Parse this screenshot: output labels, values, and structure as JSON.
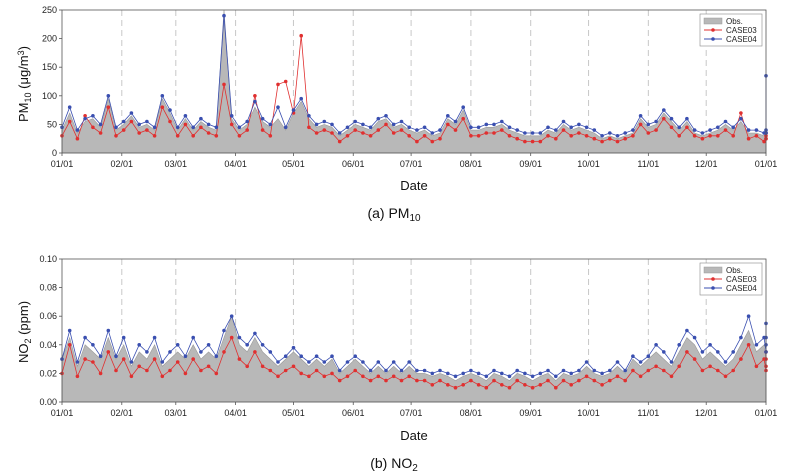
{
  "chart_data": [
    {
      "type": "area+line",
      "panel_caption": "(a) PM",
      "panel_caption_sub": "10",
      "ylabel_pre": "PM",
      "ylabel_sub": "10",
      "ylabel_mid": " (μg/m",
      "ylabel_sup": "3",
      "ylabel_post": ")",
      "xlabel": "Date",
      "ylim": [
        0,
        250
      ],
      "yticks": [
        0,
        50,
        100,
        150,
        200,
        250
      ],
      "ytick_labels": [
        "0",
        "50",
        "100",
        "150",
        "200",
        "250"
      ],
      "xtick_labels": [
        "01/01",
        "02/01",
        "03/01",
        "04/01",
        "05/01",
        "06/01",
        "07/01",
        "08/01",
        "09/01",
        "10/01",
        "11/01",
        "12/01",
        "01/01"
      ],
      "xtick_days": [
        0,
        31,
        59,
        90,
        120,
        151,
        181,
        212,
        243,
        273,
        304,
        334,
        365
      ],
      "grid": "vertical dashed at month starts",
      "legend_position": "top-right",
      "legend": [
        "Obs.",
        "CASE03",
        "CASE04"
      ],
      "day_step": 4,
      "series": [
        {
          "name": "Obs.",
          "color": "#b8b8b8",
          "kind": "area",
          "values": [
            40,
            70,
            35,
            55,
            60,
            45,
            95,
            40,
            50,
            65,
            45,
            50,
            40,
            95,
            70,
            40,
            60,
            40,
            55,
            45,
            40,
            250,
            60,
            40,
            50,
            80,
            55,
            45,
            60,
            40,
            70,
            90,
            60,
            45,
            50,
            45,
            30,
            40,
            50,
            45,
            40,
            55,
            60,
            45,
            50,
            40,
            35,
            40,
            30,
            35,
            60,
            50,
            75,
            40,
            40,
            45,
            45,
            50,
            40,
            35,
            30,
            30,
            30,
            40,
            35,
            50,
            40,
            45,
            40,
            35,
            25,
            30,
            25,
            30,
            35,
            60,
            45,
            50,
            70,
            55,
            40,
            55,
            35,
            30,
            35,
            40,
            50,
            40,
            55,
            35,
            35,
            30,
            35,
            30,
            40,
            30
          ]
        },
        {
          "name": "CASE03",
          "color": "#e03030",
          "kind": "line+marker",
          "values": [
            30,
            55,
            25,
            65,
            45,
            35,
            80,
            30,
            40,
            55,
            35,
            40,
            30,
            80,
            55,
            30,
            50,
            30,
            45,
            35,
            30,
            120,
            50,
            30,
            40,
            100,
            40,
            30,
            120,
            125,
            70,
            205,
            45,
            35,
            40,
            35,
            20,
            30,
            40,
            35,
            30,
            40,
            50,
            35,
            40,
            30,
            20,
            30,
            20,
            25,
            50,
            40,
            60,
            30,
            30,
            35,
            35,
            40,
            30,
            25,
            20,
            20,
            20,
            30,
            25,
            40,
            30,
            35,
            30,
            25,
            20,
            25,
            20,
            25,
            30,
            50,
            35,
            40,
            60,
            45,
            30,
            45,
            30,
            25,
            30,
            30,
            40,
            30,
            70,
            25,
            30,
            20,
            30,
            25,
            35,
            25
          ]
        },
        {
          "name": "CASE04",
          "color": "#3a4fb0",
          "kind": "line+marker",
          "values": [
            45,
            80,
            40,
            60,
            65,
            50,
            100,
            45,
            55,
            70,
            50,
            55,
            45,
            100,
            75,
            45,
            65,
            45,
            60,
            50,
            45,
            240,
            65,
            45,
            55,
            90,
            60,
            50,
            80,
            45,
            75,
            95,
            65,
            50,
            55,
            50,
            35,
            45,
            55,
            50,
            45,
            60,
            65,
            50,
            55,
            45,
            40,
            45,
            35,
            40,
            65,
            55,
            80,
            45,
            45,
            50,
            50,
            55,
            45,
            40,
            35,
            35,
            35,
            45,
            40,
            55,
            45,
            50,
            45,
            40,
            30,
            35,
            30,
            35,
            40,
            65,
            50,
            55,
            75,
            60,
            45,
            60,
            40,
            35,
            40,
            45,
            55,
            45,
            60,
            40,
            40,
            35,
            40,
            35,
            135,
            35
          ]
        }
      ]
    },
    {
      "type": "area+line",
      "panel_caption": "(b) NO",
      "panel_caption_sub": "2",
      "ylabel_pre": "NO",
      "ylabel_sub": "2",
      "ylabel_mid": " (ppm)",
      "ylabel_sup": "",
      "ylabel_post": "",
      "xlabel": "Date",
      "ylim": [
        0,
        0.1
      ],
      "yticks": [
        0,
        0.02,
        0.04,
        0.06,
        0.08,
        0.1
      ],
      "ytick_labels": [
        "0.00",
        "0.02",
        "0.04",
        "0.06",
        "0.08",
        "0.10"
      ],
      "xtick_labels": [
        "01/01",
        "02/01",
        "03/01",
        "04/01",
        "05/01",
        "06/01",
        "07/01",
        "08/01",
        "09/01",
        "10/01",
        "11/01",
        "12/01",
        "01/01"
      ],
      "xtick_days": [
        0,
        31,
        59,
        90,
        120,
        151,
        181,
        212,
        243,
        273,
        304,
        334,
        365
      ],
      "grid": "vertical dashed at month starts",
      "legend_position": "top-right",
      "legend": [
        "Obs.",
        "CASE03",
        "CASE04"
      ],
      "day_step": 4,
      "series": [
        {
          "name": "Obs.",
          "color": "#b8b8b8",
          "kind": "area",
          "values": [
            0.03,
            0.045,
            0.025,
            0.04,
            0.035,
            0.03,
            0.045,
            0.03,
            0.04,
            0.025,
            0.035,
            0.03,
            0.04,
            0.025,
            0.03,
            0.035,
            0.03,
            0.04,
            0.03,
            0.035,
            0.03,
            0.045,
            0.06,
            0.04,
            0.035,
            0.045,
            0.035,
            0.03,
            0.025,
            0.03,
            0.035,
            0.03,
            0.025,
            0.03,
            0.025,
            0.03,
            0.02,
            0.025,
            0.03,
            0.025,
            0.02,
            0.025,
            0.02,
            0.025,
            0.02,
            0.025,
            0.02,
            0.02,
            0.018,
            0.02,
            0.018,
            0.015,
            0.018,
            0.02,
            0.018,
            0.015,
            0.02,
            0.018,
            0.015,
            0.02,
            0.018,
            0.015,
            0.018,
            0.02,
            0.015,
            0.02,
            0.018,
            0.02,
            0.025,
            0.02,
            0.018,
            0.02,
            0.025,
            0.02,
            0.03,
            0.025,
            0.03,
            0.035,
            0.03,
            0.025,
            0.035,
            0.045,
            0.04,
            0.03,
            0.035,
            0.03,
            0.025,
            0.03,
            0.04,
            0.05,
            0.035,
            0.04,
            0.03,
            0.035,
            0.045,
            0.04
          ]
        },
        {
          "name": "CASE03",
          "color": "#e03030",
          "kind": "line+marker",
          "values": [
            0.02,
            0.04,
            0.018,
            0.03,
            0.028,
            0.02,
            0.035,
            0.022,
            0.03,
            0.018,
            0.025,
            0.022,
            0.03,
            0.018,
            0.022,
            0.028,
            0.02,
            0.03,
            0.022,
            0.025,
            0.02,
            0.035,
            0.045,
            0.03,
            0.025,
            0.035,
            0.025,
            0.022,
            0.018,
            0.022,
            0.025,
            0.02,
            0.018,
            0.022,
            0.018,
            0.02,
            0.015,
            0.018,
            0.022,
            0.018,
            0.015,
            0.018,
            0.015,
            0.018,
            0.015,
            0.018,
            0.015,
            0.015,
            0.012,
            0.015,
            0.012,
            0.01,
            0.012,
            0.015,
            0.012,
            0.01,
            0.015,
            0.012,
            0.01,
            0.015,
            0.012,
            0.01,
            0.012,
            0.015,
            0.01,
            0.015,
            0.012,
            0.015,
            0.018,
            0.015,
            0.012,
            0.015,
            0.018,
            0.015,
            0.022,
            0.018,
            0.022,
            0.025,
            0.022,
            0.018,
            0.025,
            0.035,
            0.03,
            0.022,
            0.025,
            0.022,
            0.018,
            0.022,
            0.03,
            0.04,
            0.025,
            0.03,
            0.022,
            0.025,
            0.035,
            0.03
          ]
        },
        {
          "name": "CASE04",
          "color": "#3a4fb0",
          "kind": "line+marker",
          "values": [
            0.03,
            0.05,
            0.028,
            0.045,
            0.04,
            0.032,
            0.05,
            0.032,
            0.045,
            0.028,
            0.04,
            0.035,
            0.045,
            0.028,
            0.035,
            0.04,
            0.032,
            0.045,
            0.035,
            0.04,
            0.032,
            0.05,
            0.06,
            0.045,
            0.04,
            0.048,
            0.04,
            0.035,
            0.028,
            0.032,
            0.038,
            0.032,
            0.028,
            0.032,
            0.028,
            0.032,
            0.022,
            0.028,
            0.032,
            0.028,
            0.022,
            0.028,
            0.022,
            0.028,
            0.022,
            0.028,
            0.022,
            0.022,
            0.02,
            0.022,
            0.02,
            0.018,
            0.02,
            0.022,
            0.02,
            0.018,
            0.022,
            0.02,
            0.018,
            0.022,
            0.02,
            0.018,
            0.02,
            0.022,
            0.018,
            0.022,
            0.02,
            0.022,
            0.028,
            0.022,
            0.02,
            0.022,
            0.028,
            0.022,
            0.032,
            0.028,
            0.032,
            0.04,
            0.035,
            0.028,
            0.04,
            0.05,
            0.045,
            0.035,
            0.04,
            0.035,
            0.028,
            0.035,
            0.045,
            0.06,
            0.04,
            0.045,
            0.035,
            0.04,
            0.055,
            0.045
          ]
        }
      ]
    }
  ]
}
